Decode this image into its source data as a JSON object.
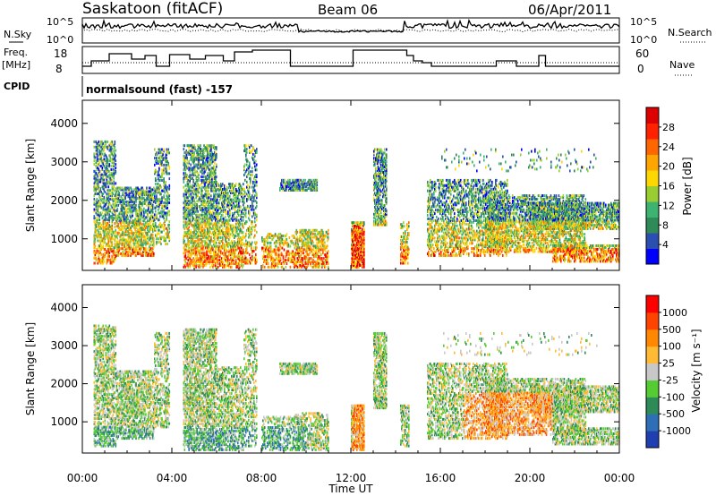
{
  "header": {
    "title": "Saskatoon (fitACF)",
    "beam": "Beam 06",
    "date": "06/Apr/2011"
  },
  "params": {
    "nsky_label": "N.Sky",
    "nsearch_label": "N.Search",
    "freq_label": "Freq.",
    "freq_unit": "[MHz]",
    "nave_label": "Nave",
    "cpid_label": "CPID",
    "cpid_text": "normalsound (fast) -157",
    "noise_ticks": [
      "10^5",
      "10^0"
    ],
    "freq_ticks": [
      "18",
      "8"
    ],
    "nave_ticks": [
      "60",
      "0"
    ]
  },
  "chart_data": [
    {
      "type": "heatmap",
      "name": "power",
      "ylabel": "Slant Range [km]",
      "ylim": [
        180,
        4600
      ],
      "yticks": [
        "1000",
        "2000",
        "3000",
        "4000"
      ],
      "yticks_val": [
        1000,
        2000,
        3000,
        4000
      ],
      "colorbar": {
        "label": "Power [dB]",
        "ticks": [
          "28",
          "24",
          "20",
          "16",
          "12",
          "8",
          "4"
        ],
        "colors": [
          "#0000ff",
          "#2a4fb0",
          "#2e8b57",
          "#3cb371",
          "#9acd32",
          "#ffd700",
          "#ffa500",
          "#ff6600",
          "#ff2200",
          "#dd0000"
        ]
      }
    },
    {
      "type": "heatmap",
      "name": "velocity",
      "ylabel": "Slant Range [km]",
      "ylim": [
        180,
        4600
      ],
      "yticks": [
        "1000",
        "2000",
        "3000",
        "4000"
      ],
      "yticks_val": [
        1000,
        2000,
        3000,
        4000
      ],
      "colorbar": {
        "label": "Velocity [m s⁻¹]",
        "ticks": [
          "1000",
          "500",
          "100",
          "25",
          "-25",
          "-100",
          "-500",
          "-1000"
        ],
        "colors": [
          "#1f3fb0",
          "#2e6fb8",
          "#2e8b57",
          "#55cc33",
          "#c8c8c8",
          "#ffbb33",
          "#ff8800",
          "#ff4400",
          "#ff0000"
        ]
      }
    }
  ],
  "xaxis": {
    "label": "Time UT",
    "ticks": [
      "00:00",
      "04:00",
      "08:00",
      "12:00",
      "16:00",
      "20:00",
      "00:00"
    ],
    "range_hours": [
      0,
      24
    ]
  }
}
